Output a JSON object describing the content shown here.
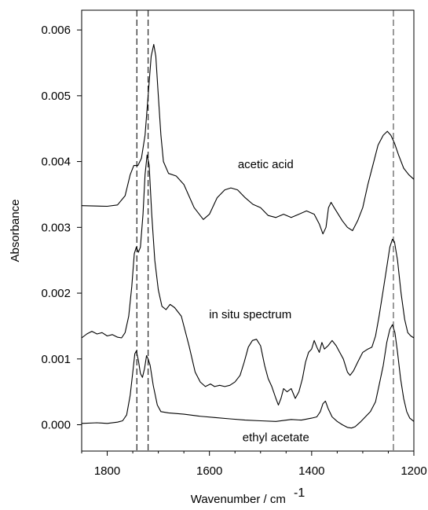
{
  "chart_data": {
    "type": "line",
    "xlabel": "Wavenumber / cm",
    "xlabel_superscript": "-1",
    "ylabel": "Absorbance",
    "xlim": [
      1850,
      1200
    ],
    "ylim": [
      -0.0004,
      0.0063
    ],
    "x_reversed": true,
    "x_ticks": [
      1800,
      1600,
      1400,
      1200
    ],
    "y_ticks": [
      0.0,
      0.001,
      0.002,
      0.003,
      0.004,
      0.005,
      0.006
    ],
    "grid": false,
    "reference_lines_x": [
      1742,
      1720,
      1240
    ],
    "reference_line_style": "dashed",
    "series": [
      {
        "label": "acetic acid",
        "label_position": [
          1490,
          0.0039
        ],
        "points": [
          [
            1850,
            0.00333
          ],
          [
            1800,
            0.00332
          ],
          [
            1780,
            0.00334
          ],
          [
            1765,
            0.00348
          ],
          [
            1755,
            0.0038
          ],
          [
            1748,
            0.00394
          ],
          [
            1740,
            0.00394
          ],
          [
            1733,
            0.00405
          ],
          [
            1726,
            0.0044
          ],
          [
            1720,
            0.005
          ],
          [
            1714,
            0.0056
          ],
          [
            1709,
            0.00578
          ],
          [
            1705,
            0.0056
          ],
          [
            1700,
            0.005
          ],
          [
            1695,
            0.0044
          ],
          [
            1690,
            0.004
          ],
          [
            1680,
            0.00382
          ],
          [
            1665,
            0.00378
          ],
          [
            1650,
            0.00365
          ],
          [
            1630,
            0.0033
          ],
          [
            1612,
            0.00312
          ],
          [
            1600,
            0.0032
          ],
          [
            1585,
            0.00345
          ],
          [
            1570,
            0.00357
          ],
          [
            1558,
            0.0036
          ],
          [
            1545,
            0.00357
          ],
          [
            1530,
            0.00345
          ],
          [
            1515,
            0.00335
          ],
          [
            1500,
            0.0033
          ],
          [
            1485,
            0.00318
          ],
          [
            1470,
            0.00315
          ],
          [
            1455,
            0.0032
          ],
          [
            1440,
            0.00315
          ],
          [
            1425,
            0.0032
          ],
          [
            1410,
            0.00325
          ],
          [
            1395,
            0.0032
          ],
          [
            1385,
            0.00305
          ],
          [
            1378,
            0.0029
          ],
          [
            1372,
            0.003
          ],
          [
            1367,
            0.0033
          ],
          [
            1362,
            0.00338
          ],
          [
            1356,
            0.0033
          ],
          [
            1348,
            0.0032
          ],
          [
            1340,
            0.0031
          ],
          [
            1330,
            0.003
          ],
          [
            1320,
            0.00295
          ],
          [
            1310,
            0.0031
          ],
          [
            1300,
            0.0033
          ],
          [
            1290,
            0.00365
          ],
          [
            1280,
            0.00395
          ],
          [
            1270,
            0.00425
          ],
          [
            1260,
            0.0044
          ],
          [
            1252,
            0.00446
          ],
          [
            1245,
            0.0044
          ],
          [
            1238,
            0.00428
          ],
          [
            1230,
            0.0041
          ],
          [
            1220,
            0.0039
          ],
          [
            1210,
            0.0038
          ],
          [
            1200,
            0.00373
          ]
        ]
      },
      {
        "label": "in situ spectrum",
        "label_position": [
          1520,
          0.00162
        ],
        "points": [
          [
            1850,
            0.00132
          ],
          [
            1840,
            0.00138
          ],
          [
            1830,
            0.00142
          ],
          [
            1820,
            0.00138
          ],
          [
            1810,
            0.0014
          ],
          [
            1800,
            0.00135
          ],
          [
            1790,
            0.00137
          ],
          [
            1780,
            0.00133
          ],
          [
            1772,
            0.00132
          ],
          [
            1765,
            0.0014
          ],
          [
            1758,
            0.00165
          ],
          [
            1752,
            0.0021
          ],
          [
            1747,
            0.0026
          ],
          [
            1743,
            0.0027
          ],
          [
            1739,
            0.00262
          ],
          [
            1735,
            0.0027
          ],
          [
            1730,
            0.0032
          ],
          [
            1726,
            0.0038
          ],
          [
            1722,
            0.0041
          ],
          [
            1718,
            0.00395
          ],
          [
            1713,
            0.0032
          ],
          [
            1707,
            0.0025
          ],
          [
            1700,
            0.00205
          ],
          [
            1693,
            0.0018
          ],
          [
            1685,
            0.00175
          ],
          [
            1677,
            0.00183
          ],
          [
            1668,
            0.00178
          ],
          [
            1655,
            0.00165
          ],
          [
            1640,
            0.0012
          ],
          [
            1628,
            0.0008
          ],
          [
            1618,
            0.00065
          ],
          [
            1608,
            0.00058
          ],
          [
            1598,
            0.00062
          ],
          [
            1590,
            0.00058
          ],
          [
            1580,
            0.0006
          ],
          [
            1570,
            0.00058
          ],
          [
            1560,
            0.0006
          ],
          [
            1550,
            0.00065
          ],
          [
            1540,
            0.00075
          ],
          [
            1532,
            0.00095
          ],
          [
            1524,
            0.00118
          ],
          [
            1516,
            0.00128
          ],
          [
            1508,
            0.0013
          ],
          [
            1500,
            0.0012
          ],
          [
            1492,
            0.0009
          ],
          [
            1485,
            0.0007
          ],
          [
            1478,
            0.00058
          ],
          [
            1470,
            0.0004
          ],
          [
            1465,
            0.0003
          ],
          [
            1460,
            0.0004
          ],
          [
            1455,
            0.00055
          ],
          [
            1448,
            0.0005
          ],
          [
            1440,
            0.00055
          ],
          [
            1432,
            0.0004
          ],
          [
            1425,
            0.0005
          ],
          [
            1418,
            0.0007
          ],
          [
            1412,
            0.00095
          ],
          [
            1406,
            0.0011
          ],
          [
            1400,
            0.00115
          ],
          [
            1395,
            0.00128
          ],
          [
            1390,
            0.00118
          ],
          [
            1385,
            0.0011
          ],
          [
            1380,
            0.00125
          ],
          [
            1375,
            0.00115
          ],
          [
            1368,
            0.0012
          ],
          [
            1360,
            0.00128
          ],
          [
            1352,
            0.0012
          ],
          [
            1345,
            0.0011
          ],
          [
            1338,
            0.001
          ],
          [
            1330,
            0.0008
          ],
          [
            1325,
            0.00075
          ],
          [
            1318,
            0.00082
          ],
          [
            1310,
            0.00095
          ],
          [
            1300,
            0.0011
          ],
          [
            1290,
            0.00115
          ],
          [
            1282,
            0.00118
          ],
          [
            1275,
            0.00135
          ],
          [
            1268,
            0.00165
          ],
          [
            1260,
            0.00205
          ],
          [
            1252,
            0.00245
          ],
          [
            1247,
            0.0027
          ],
          [
            1242,
            0.00282
          ],
          [
            1238,
            0.00278
          ],
          [
            1232,
            0.0025
          ],
          [
            1225,
            0.002
          ],
          [
            1218,
            0.0016
          ],
          [
            1212,
            0.0014
          ],
          [
            1206,
            0.00135
          ],
          [
            1200,
            0.00132
          ]
        ]
      },
      {
        "label": "ethyl acetate",
        "label_position": [
          1470,
          -0.00025
        ],
        "points": [
          [
            1850,
            2e-05
          ],
          [
            1820,
            3e-05
          ],
          [
            1800,
            2e-05
          ],
          [
            1780,
            4e-05
          ],
          [
            1770,
            6e-05
          ],
          [
            1762,
            0.00015
          ],
          [
            1755,
            0.00045
          ],
          [
            1750,
            0.0008
          ],
          [
            1746,
            0.00108
          ],
          [
            1743,
            0.00112
          ],
          [
            1739,
            0.00098
          ],
          [
            1735,
            0.00078
          ],
          [
            1731,
            0.00072
          ],
          [
            1727,
            0.00085
          ],
          [
            1723,
            0.00105
          ],
          [
            1720,
            0.001
          ],
          [
            1716,
            0.0009
          ],
          [
            1710,
            0.0006
          ],
          [
            1702,
            0.0003
          ],
          [
            1695,
            0.0002
          ],
          [
            1680,
            0.00018
          ],
          [
            1650,
            0.00016
          ],
          [
            1620,
            0.00013
          ],
          [
            1590,
            0.00011
          ],
          [
            1560,
            9e-05
          ],
          [
            1530,
            7e-05
          ],
          [
            1500,
            6e-05
          ],
          [
            1470,
            5e-05
          ],
          [
            1440,
            8e-05
          ],
          [
            1420,
            7e-05
          ],
          [
            1400,
            0.0001
          ],
          [
            1390,
            0.00012
          ],
          [
            1383,
            0.0002
          ],
          [
            1378,
            0.00032
          ],
          [
            1373,
            0.00036
          ],
          [
            1368,
            0.00025
          ],
          [
            1360,
            0.00012
          ],
          [
            1350,
            5e-05
          ],
          [
            1340,
            0.0
          ],
          [
            1330,
            -4e-05
          ],
          [
            1322,
            -5e-05
          ],
          [
            1315,
            -3e-05
          ],
          [
            1305,
            4e-05
          ],
          [
            1295,
            0.00012
          ],
          [
            1285,
            0.0002
          ],
          [
            1275,
            0.00035
          ],
          [
            1268,
            0.0006
          ],
          [
            1260,
            0.0009
          ],
          [
            1253,
            0.00125
          ],
          [
            1247,
            0.00145
          ],
          [
            1242,
            0.00152
          ],
          [
            1237,
            0.0014
          ],
          [
            1232,
            0.0011
          ],
          [
            1226,
            0.0007
          ],
          [
            1220,
            0.0004
          ],
          [
            1214,
            0.0002
          ],
          [
            1208,
            0.0001
          ],
          [
            1200,
            5e-05
          ]
        ]
      }
    ]
  }
}
